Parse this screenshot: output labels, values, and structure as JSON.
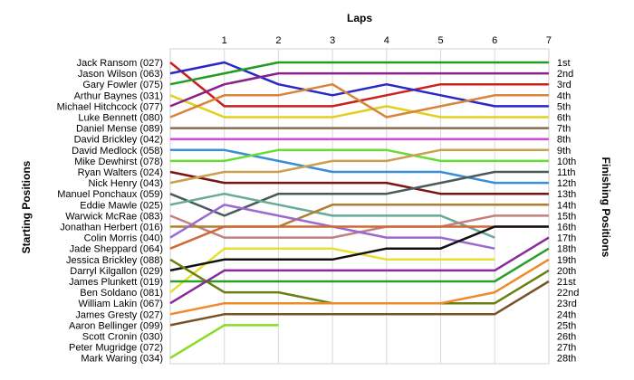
{
  "chart_data": {
    "type": "line",
    "title": "",
    "xlabel": "Laps",
    "ylabel_left": "Starting Positions",
    "ylabel_right": "Finishing Positions",
    "x": [
      0,
      1,
      2,
      3,
      4,
      5,
      6,
      7
    ],
    "x_tick_labels": [
      "1",
      "2",
      "3",
      "4",
      "5",
      "6",
      "7"
    ],
    "ylim": [
      1,
      28
    ],
    "y_inverted": true,
    "grid": true,
    "start_labels": [
      "Jack Ransom (027)",
      "Jason Wilson (063)",
      "Gary Fowler (075)",
      "Arthur Baynes (031)",
      "Michael Hitchcock (077)",
      "Luke Bennett (080)",
      "Daniel Mense (089)",
      "David Brickley (042)",
      "David Medlock (058)",
      "Mike Dewhirst (078)",
      "Ryan Walters (024)",
      "Nick Henry (043)",
      "Manuel Ponchaux (059)",
      "Eddie Mawle (025)",
      "Warwick McRae (083)",
      "Jonathan Herbert (016)",
      "Colin Morris (040)",
      "Jade Sheppard (064)",
      "Jessica Brickley (088)",
      "Darryl Kilgallon (029)",
      "James Plunkett (019)",
      "Ben Soldano (081)",
      "William Lakin (067)",
      "James Gresty (027)",
      "Aaron Bellinger (099)",
      "Scott Cronin (030)",
      "Peter Mugridge (072)",
      "Mark Waring (034)"
    ],
    "finish_labels": [
      "1st",
      "2nd",
      "3rd",
      "4th",
      "5th",
      "6th",
      "7th",
      "8th",
      "9th",
      "10th",
      "11th",
      "12th",
      "13th",
      "14th",
      "15th",
      "16th",
      "17th",
      "18th",
      "19th",
      "20th",
      "21st",
      "22nd",
      "23rd",
      "24th",
      "25th",
      "26th",
      "27th",
      "28th"
    ],
    "series": [
      {
        "color": "#cc1f1f",
        "values": [
          1,
          5,
          5,
          5,
          4,
          3,
          3,
          3
        ]
      },
      {
        "color": "#2828c8",
        "values": [
          2,
          1,
          3,
          4,
          3,
          4,
          5,
          5
        ]
      },
      {
        "color": "#259a25",
        "values": [
          3,
          2,
          1,
          1,
          1,
          1,
          1,
          1
        ]
      },
      {
        "color": "#e0d020",
        "values": [
          4,
          6,
          6,
          6,
          5,
          6,
          6,
          6
        ]
      },
      {
        "color": "#8a208a",
        "values": [
          5,
          3,
          2,
          2,
          2,
          2,
          2,
          2
        ]
      },
      {
        "color": "#d8843a",
        "values": [
          6,
          4,
          4,
          3,
          6,
          5,
          4,
          4
        ]
      },
      {
        "color": "#8c6a50",
        "values": [
          7,
          7,
          7,
          7,
          7,
          7,
          7,
          7
        ]
      },
      {
        "color": "#dd44dd",
        "values": [
          8,
          8,
          8,
          8,
          8,
          8,
          8,
          8
        ]
      },
      {
        "color": "#3a8ed8",
        "values": [
          9,
          9,
          10,
          11,
          11,
          11,
          12,
          12
        ]
      },
      {
        "color": "#66dd33",
        "values": [
          10,
          10,
          9,
          9,
          9,
          10,
          10,
          10
        ]
      },
      {
        "color": "#7a1414",
        "values": [
          11,
          12,
          12,
          12,
          12,
          13,
          13,
          13
        ]
      },
      {
        "color": "#c8a050",
        "values": [
          12,
          11,
          11,
          10,
          10,
          9,
          9,
          9
        ]
      },
      {
        "color": "#4a5a5a",
        "values": [
          13,
          15,
          13,
          13,
          13,
          12,
          11,
          11
        ]
      },
      {
        "color": "#66aa99",
        "values": [
          14,
          13,
          14,
          15,
          15,
          15,
          17,
          null
        ]
      },
      {
        "color": "#c47f7f",
        "values": [
          15,
          17,
          17,
          17,
          16,
          16,
          15,
          15
        ]
      },
      {
        "color": "#b07e2e",
        "values": [
          16,
          16,
          16,
          14,
          14,
          14,
          14,
          14
        ]
      },
      {
        "color": "#9a6ad0",
        "values": [
          17,
          14,
          15,
          16,
          17,
          17,
          18,
          null
        ]
      },
      {
        "color": "#d06838",
        "values": [
          18,
          16,
          16,
          16,
          16,
          16,
          16,
          16
        ]
      },
      {
        "color": "#e8e030",
        "values": [
          22,
          18,
          18,
          18,
          19,
          19,
          19,
          null
        ]
      },
      {
        "color": "#111111",
        "values": [
          20,
          19,
          19,
          19,
          18,
          18,
          16,
          16
        ]
      },
      {
        "color": "#2aa02a",
        "values": [
          21,
          21,
          21,
          21,
          21,
          21,
          21,
          18
        ]
      },
      {
        "color": "#6b7e14",
        "values": [
          19,
          22,
          22,
          23,
          23,
          23,
          23,
          20
        ]
      },
      {
        "color": "#8a2a9a",
        "values": [
          23,
          20,
          20,
          20,
          20,
          20,
          20,
          17
        ]
      },
      {
        "color": "#f08a28",
        "values": [
          24,
          23,
          23,
          23,
          23,
          23,
          22,
          19
        ]
      },
      {
        "color": "#7a5228",
        "values": [
          25,
          24,
          24,
          24,
          24,
          24,
          24,
          21
        ]
      },
      {
        "color": "#88dd22",
        "values": [
          28,
          25,
          25,
          null,
          null,
          null,
          null,
          null
        ]
      }
    ]
  }
}
